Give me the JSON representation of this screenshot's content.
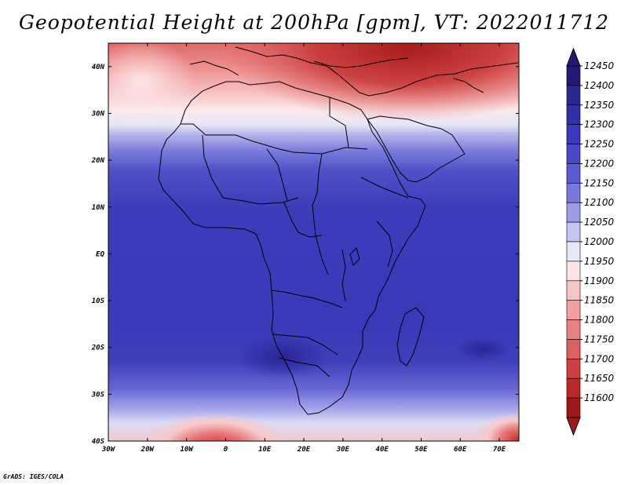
{
  "title": "Geopotential Height at 200hPa [gpm], VT: 2022011712",
  "credit": "GrADS: IGES/COLA",
  "lat_ticks": [
    "40N",
    "30N",
    "20N",
    "10N",
    "EQ",
    "10S",
    "20S",
    "30S",
    "40S"
  ],
  "lon_ticks": [
    "30W",
    "20W",
    "10W",
    "0",
    "10E",
    "20E",
    "30E",
    "40E",
    "50E",
    "60E",
    "70E"
  ],
  "map_extent": {
    "lon": [
      -30,
      75
    ],
    "lat": [
      -40,
      45
    ]
  },
  "colorbar": {
    "labels": [
      "12450",
      "12400",
      "12350",
      "12300",
      "12250",
      "12200",
      "12150",
      "12100",
      "12050",
      "12000",
      "11950",
      "11900",
      "11850",
      "11800",
      "11750",
      "11700",
      "11650",
      "11600"
    ],
    "colors": [
      "#241878",
      "#2a2890",
      "#3030a8",
      "#3a3abc",
      "#4848c8",
      "#5c5cd2",
      "#7878dc",
      "#9c9ce6",
      "#c4c4f0",
      "#e8e8f8",
      "#fce4e4",
      "#f8c4c4",
      "#f0a0a0",
      "#e88080",
      "#dc6060",
      "#d04040",
      "#bc2828",
      "#a01818"
    ]
  }
}
